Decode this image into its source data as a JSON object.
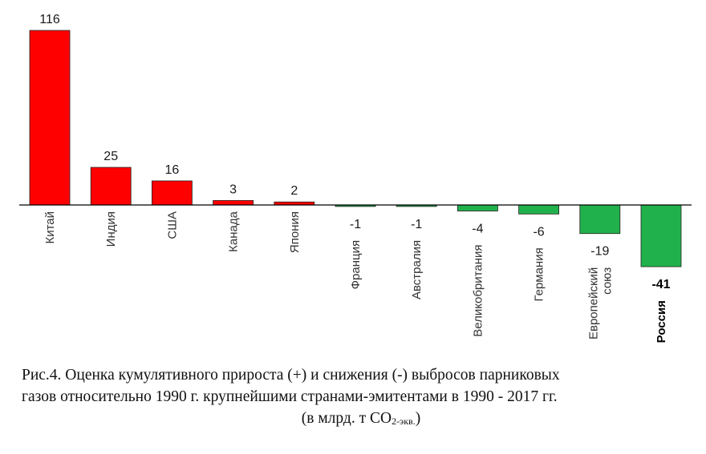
{
  "chart_data": {
    "type": "bar",
    "categories": [
      "Китай",
      "Индия",
      "США",
      "Канада",
      "Япония",
      "Франция",
      "Австралия",
      "Великобритания",
      "Германия",
      "Европейский союз",
      "Россия"
    ],
    "category_lines": [
      [
        "Китай"
      ],
      [
        "Индия"
      ],
      [
        "США"
      ],
      [
        "Канада"
      ],
      [
        "Япония"
      ],
      [
        "Франция"
      ],
      [
        "Австралия"
      ],
      [
        "Великобритания"
      ],
      [
        "Германия"
      ],
      [
        "Европейский",
        "союз"
      ],
      [
        "Россия"
      ]
    ],
    "values": [
      116,
      25,
      16,
      3,
      2,
      -1,
      -1,
      -4,
      -6,
      -19,
      -41
    ],
    "value_labels": [
      "116",
      "25",
      "16",
      "3",
      "2",
      "-1",
      "-1",
      "-4",
      "-6",
      "-19",
      "-41"
    ],
    "highlight_category": "Россия",
    "colors": {
      "positive": "#ff0000",
      "negative": "#21b14c",
      "axis": "#000000"
    },
    "ylim": [
      -41,
      116
    ],
    "grid": false,
    "legend": "none"
  },
  "caption": {
    "line1": "Рис.4. Оценка кумулятивного прироста (+) и снижения (-) выбросов парниковых",
    "line2": "газов относительно 1990 г. крупнейшими странами-эмитентами в 1990 - 2017 гг.",
    "line3_prefix": "(в млрд. т CO",
    "line3_sub": "2-экв.",
    "line3_suffix": ")"
  }
}
